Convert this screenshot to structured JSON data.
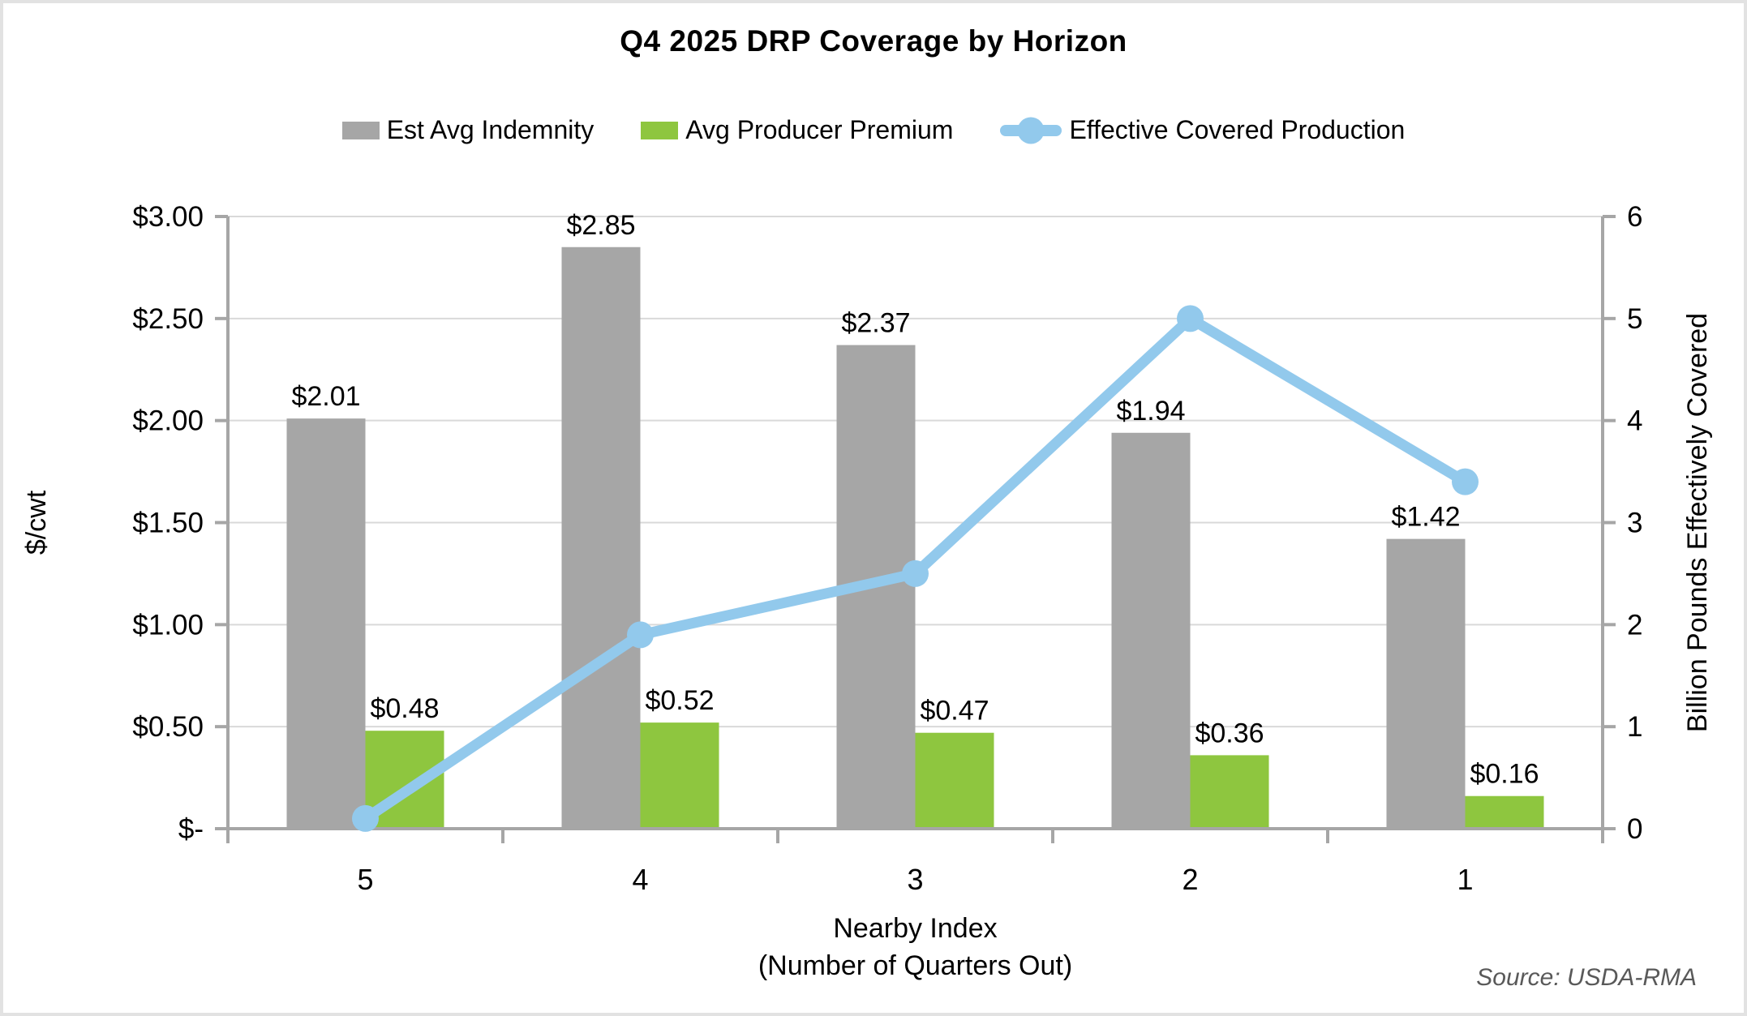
{
  "title": "Q4 2025 DRP Coverage by Horizon",
  "legend": [
    {
      "label": "Est Avg Indemnity",
      "type": "bar",
      "color": "#A6A6A6"
    },
    {
      "label": "Avg Producer Premium",
      "type": "bar",
      "color": "#8EC63F"
    },
    {
      "label": "Effective Covered Production",
      "type": "line",
      "color": "#92C9EC"
    }
  ],
  "source_note": "Source: USDA-RMA",
  "chart_data": {
    "type": "bar",
    "subtype": "dual-axis bar + line combo",
    "title": "Q4 2025 DRP Coverage by Horizon",
    "categories": [
      "5",
      "4",
      "3",
      "2",
      "1"
    ],
    "series": [
      {
        "name": "Est Avg Indemnity",
        "type": "bar",
        "axis": "left",
        "color": "#A6A6A6",
        "values": [
          2.01,
          2.85,
          2.37,
          1.94,
          1.42
        ],
        "labels": [
          "$2.01",
          "$2.85",
          "$2.37",
          "$1.94",
          "$1.42"
        ]
      },
      {
        "name": "Avg Producer Premium",
        "type": "bar",
        "axis": "left",
        "color": "#8EC63F",
        "values": [
          0.48,
          0.52,
          0.47,
          0.36,
          0.16
        ],
        "labels": [
          "$0.48",
          "$0.52",
          "$0.47",
          "$0.36",
          "$0.16"
        ]
      },
      {
        "name": "Effective Covered Production",
        "type": "line",
        "axis": "right",
        "color": "#92C9EC",
        "values": [
          0.1,
          1.9,
          2.5,
          5.0,
          3.4
        ]
      }
    ],
    "left_axis": {
      "title": "$/cwt",
      "min": 0,
      "max": 3,
      "ticks": [
        "$-",
        "$0.50",
        "$1.00",
        "$1.50",
        "$2.00",
        "$2.50",
        "$3.00"
      ]
    },
    "right_axis": {
      "title": "Billion Pounds Effectively Covered",
      "min": 0,
      "max": 6,
      "ticks": [
        "0",
        "1",
        "2",
        "3",
        "4",
        "5",
        "6"
      ]
    },
    "x_axis": {
      "title_line1": "Nearby Index",
      "title_line2": "(Number of Quarters Out)"
    },
    "grid": true,
    "legend_position": "top",
    "grid_color": "#D9D9D9",
    "axis_color": "#A6A6A6",
    "label_color": "#000000"
  }
}
